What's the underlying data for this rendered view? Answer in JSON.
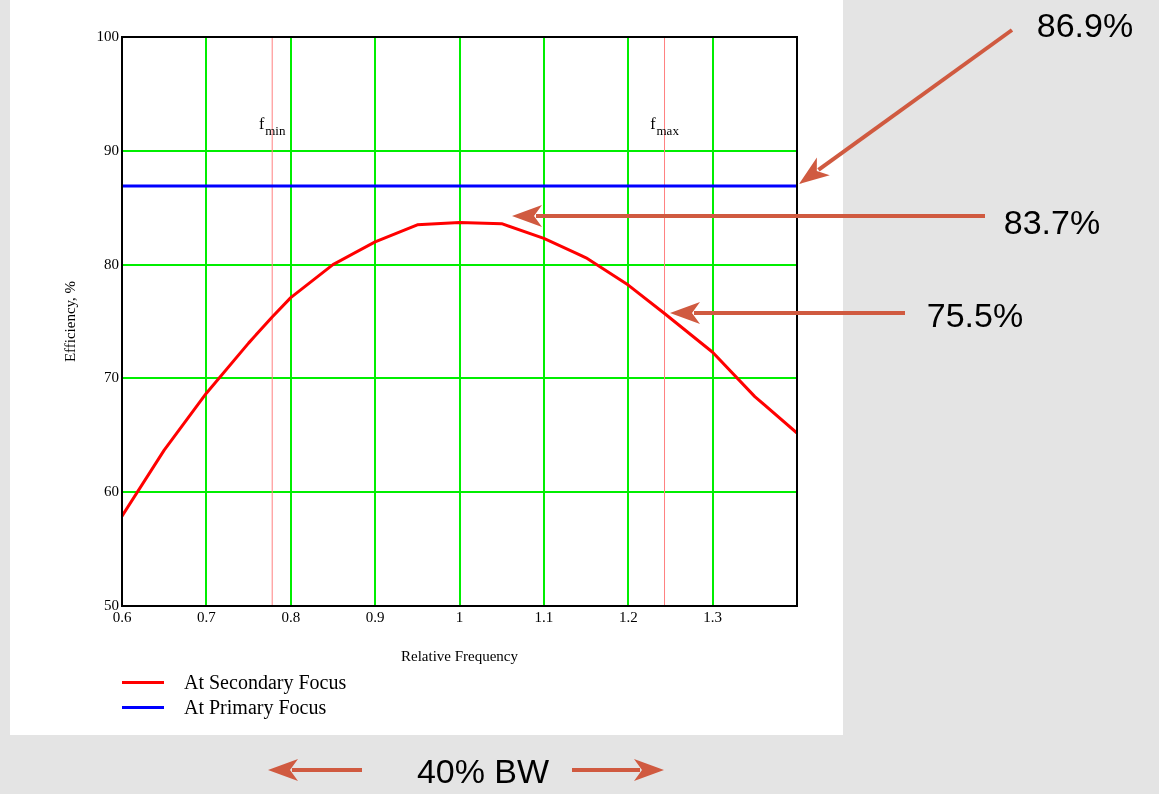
{
  "chart_data": {
    "type": "line",
    "xlabel": "Relative Frequency",
    "ylabel": "Efficiency, %",
    "xlim": [
      0.6,
      1.4
    ],
    "ylim": [
      50,
      100
    ],
    "xticks": [
      0.6,
      0.7,
      0.8,
      0.9,
      1,
      1.1,
      1.2,
      1.3
    ],
    "yticks": [
      50,
      60,
      70,
      80,
      90,
      100
    ],
    "grid": true,
    "legend": "bottom",
    "marker": "none",
    "line_style": "solid",
    "series": [
      {
        "name": "At Secondary Focus",
        "color": "#ff0000",
        "x": [
          0.6,
          0.65,
          0.7,
          0.75,
          0.778,
          0.8,
          0.85,
          0.9,
          0.95,
          1.0,
          1.05,
          1.1,
          1.15,
          1.2,
          1.243,
          1.3,
          1.35,
          1.4
        ],
        "values": [
          57.9,
          63.7,
          68.7,
          73.1,
          75.4,
          77.1,
          80.0,
          82.0,
          83.5,
          83.7,
          83.6,
          82.3,
          80.6,
          78.2,
          75.7,
          72.3,
          68.4,
          65.2
        ]
      },
      {
        "name": "At Primary Focus",
        "color": "#0000ff",
        "x": [
          0.6,
          1.4
        ],
        "values": [
          86.9,
          86.9
        ]
      }
    ],
    "ref_lines": [
      {
        "axis": "x",
        "value": 0.778,
        "label": "f$_{min}$",
        "color": "#ff8080"
      },
      {
        "axis": "x",
        "value": 1.243,
        "label": "f$_{max}$",
        "color": "#ff8080"
      }
    ],
    "annotations": [
      "86.9%",
      "83.7%",
      "75.5%",
      "40% BW"
    ]
  }
}
